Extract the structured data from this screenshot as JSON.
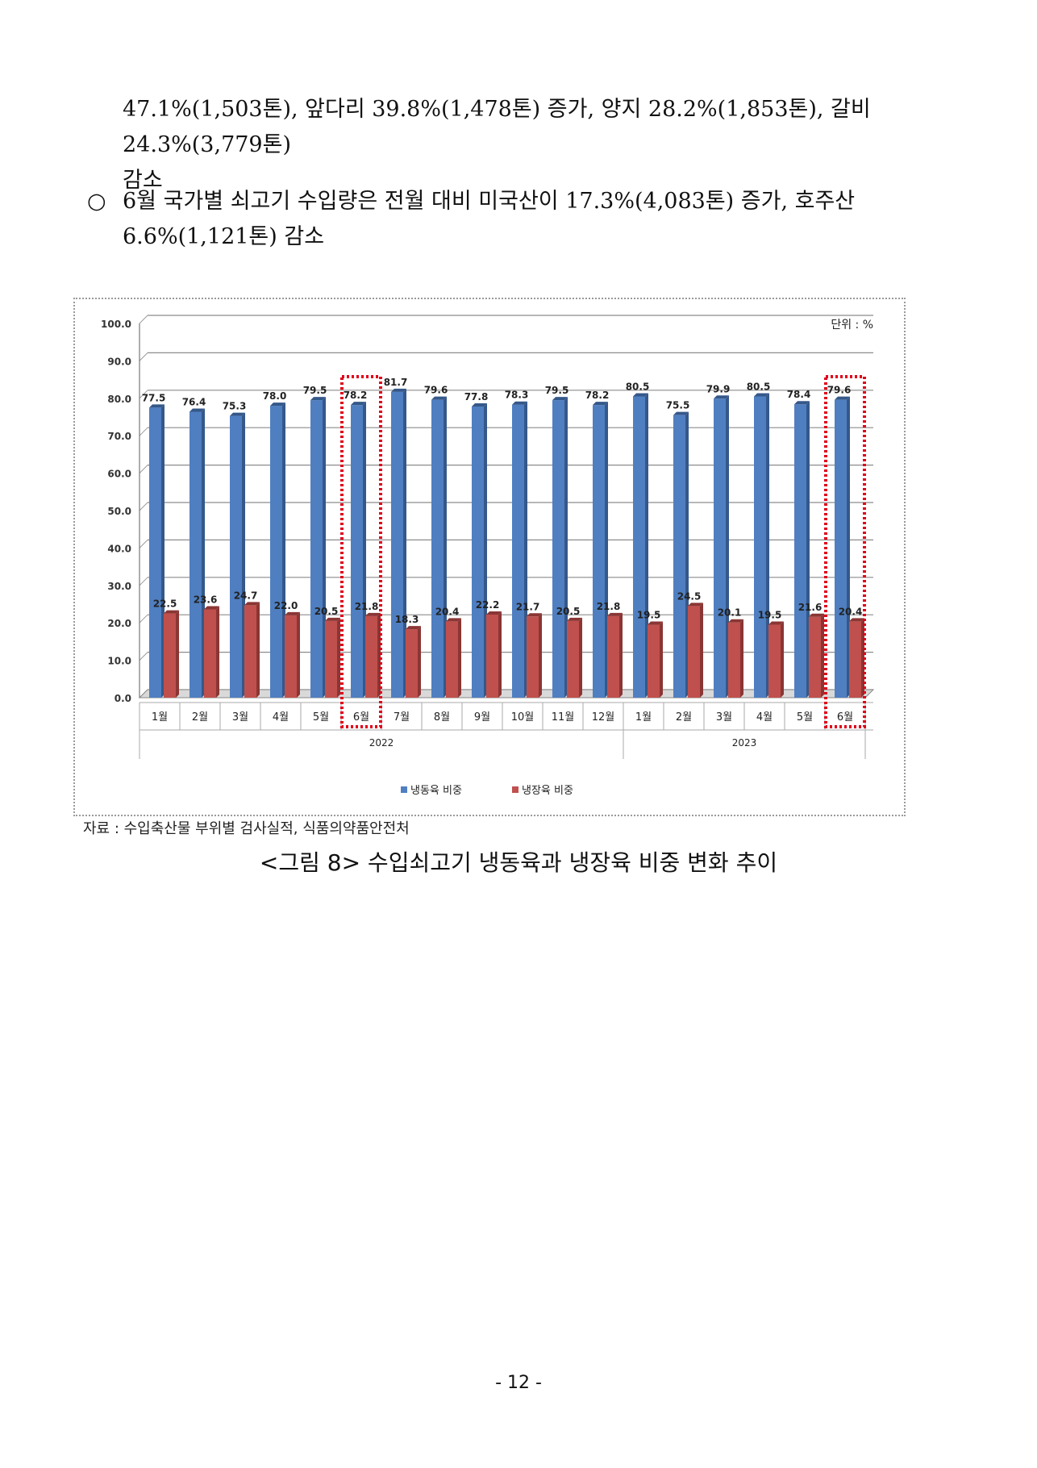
{
  "paragraphs": {
    "p1_line1": "47.1%(1,503톤), 앞다리 39.8%(1,478톤) 증가, 양지 28.2%(1,853톤), 갈비 24.3%(3,779톤)",
    "p1_line2": "감소",
    "p2_bullet": "○",
    "p2_line1": "6월 국가별 쇠고기 수입량은 전월 대비 미국산이 17.3%(4,083톤) 증가, 호주산",
    "p2_line2": "6.6%(1,121톤) 감소"
  },
  "chart_data": {
    "type": "bar",
    "unit_label": "단위 : %",
    "categories": [
      "1월",
      "2월",
      "3월",
      "4월",
      "5월",
      "6월",
      "7월",
      "8월",
      "9월",
      "10월",
      "11월",
      "12월",
      "1월",
      "2월",
      "3월",
      "4월",
      "5월",
      "6월"
    ],
    "groups": [
      {
        "label": "2022",
        "count": 12
      },
      {
        "label": "2023",
        "count": 6
      }
    ],
    "series": [
      {
        "name": "냉동육 비중",
        "color": "#4f7fc1",
        "values": [
          77.5,
          76.4,
          75.3,
          78.0,
          79.5,
          78.2,
          81.7,
          79.6,
          77.8,
          78.3,
          79.5,
          78.2,
          80.5,
          75.5,
          79.9,
          80.5,
          78.4,
          79.6
        ]
      },
      {
        "name": "냉장육 비중",
        "color": "#c0504d",
        "values": [
          22.5,
          23.6,
          24.7,
          22.0,
          20.5,
          21.8,
          18.3,
          20.4,
          22.2,
          21.7,
          20.5,
          21.8,
          19.5,
          24.5,
          20.1,
          19.5,
          21.6,
          20.4
        ]
      }
    ],
    "yticks": [
      "100.0",
      "90.0",
      "80.0",
      "70.0",
      "60.0",
      "50.0",
      "40.0",
      "30.0",
      "20.0",
      "10.0",
      "0.0"
    ],
    "ylim": [
      0,
      100
    ],
    "highlighted_categories": [
      5,
      17
    ],
    "highlight_color": "#e0001a",
    "legend_position": "bottom-center",
    "grid": true
  },
  "source": "자료 : 수입축산물 부위별 검사실적, 식품의약품안전처",
  "caption": "<그림 8> 수입쇠고기 냉동육과 냉장육 비중 변화 추이",
  "page_number": "- 12 -"
}
